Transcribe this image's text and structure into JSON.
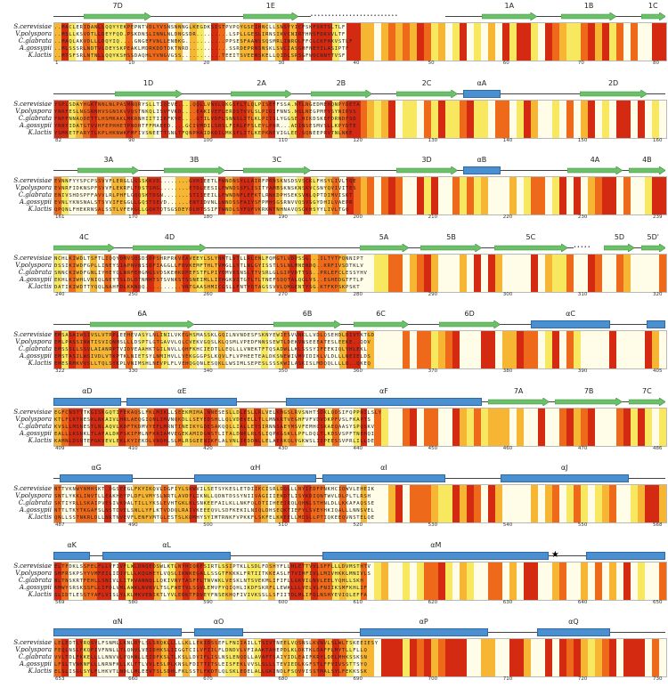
{
  "species": [
    "S.cerevisiae",
    "V.polyspora",
    "C.glabrata",
    "A.gossypii",
    "K.lactis"
  ],
  "colors": {
    "strand": "#6cc06a",
    "helix": "#4a8fd0",
    "identical": "#d42a12",
    "high": "#ee6a1a",
    "medium": "#f6b532",
    "low": "#f8e860",
    "none": "#fffce8"
  },
  "blocks": [
    {
      "ticks": [
        "1",
        "10",
        "20",
        "30",
        "40",
        "50",
        "60",
        "70",
        "80"
      ],
      "ss": [
        {
          "type": "strand",
          "label": "7D",
          "start": 0.05,
          "end": 0.16
        },
        {
          "type": "strand",
          "label": "1E",
          "start": 0.31,
          "end": 0.4
        },
        {
          "type": "gap",
          "start": 0.42,
          "end": 0.64
        },
        {
          "type": "strand",
          "label": "1A",
          "start": 0.7,
          "end": 0.79
        },
        {
          "type": "strand",
          "label": "1B",
          "start": 0.83,
          "end": 0.92
        },
        {
          "type": "strand",
          "label": "1C",
          "start": 0.96,
          "end": 1.0
        }
      ],
      "seqs": [
        "..MACLERIDANLLQQYYEKPEPNTVDLYVSNSNNNGLKEGDKSISTPVPQYGSEIHNCLLSNSYYICFSKFSRTSLTLF",
        "..MSLLKSVDTLLDEYFQD.PSKDNSLINNLNLDNGSDR.........LSPLLGESLIRNSIKVCNIRYHNSFDKVVLTF",
        "..MAQLAKVDLLLDQYIQ....GNGEFVNLLENBKG...........PPSESFAANSSQSMRLINRGLFFCLCKFHKVSTLF",
        "..MLSSSRLNDTVLDEYSKPEAKLMDRKDDTDKTNRD...........SSRDEPRNSNSKLSVCIASGHFNEYILASIPTF",
        "..MTSFSRLNTNLLQQYKSHSSDAQHLYVNGVGSS...........TEEITSVEENSKELLQIDLSRSGFWQCNNYTVSF"
      ]
    },
    {
      "ticks": [
        "82",
        "90",
        "100",
        "110",
        "120",
        "130",
        "140",
        "150",
        "160"
      ],
      "ss": [
        {
          "type": "strand",
          "label": "1D",
          "start": 0.1,
          "end": 0.21
        },
        {
          "type": "strand",
          "label": "2A",
          "start": 0.29,
          "end": 0.39
        },
        {
          "type": "strand",
          "label": "2B",
          "start": 0.42,
          "end": 0.52
        },
        {
          "type": "strand",
          "label": "2C",
          "start": 0.56,
          "end": 0.66
        },
        {
          "type": "helix",
          "label": "αA",
          "start": 0.67,
          "end": 0.73
        },
        {
          "type": "strand",
          "label": "2D",
          "start": 0.86,
          "end": 0.97
        }
      ],
      "seqs": [
        "YSPLSDAYHGKTNNLNLPASMNQRYSLLTIQEVE....QQLLVNVLQKGSFLTLQLPISEFFSSA.NTLNGEDMEHQNPYDETA",
        "YNRFESLNGSNNHVSGNSKVVQSTNKQLISVFVKD....EAKIVEFLERDSTVVLSLPIDIFNNS.NSLNEGPMFYSYNIDVS",
        "FNPFNNAQDETTLHSMKAKLMKRNHIITIIRFKVE....GTILVDFLSNNSLITLKLPIISLYGGSE.HIKDSKEFDRNDFSD",
        "YRNYIDATGTVVHFEPHHETPNDHTFFMAEED....GCIVMDILSRSLFIRLPFSLEYLPNR...ADINSESMVSLLKPYDTE",
        "YSMKETFARYTLKPLHKNWKFMFIVSNEETTSNLTFQNPHAIDKDILMKSFLITLKEPKNEVIGLEE.SQNEEPRVTNLNKE"
      ]
    },
    {
      "ticks": [
        "161",
        "170",
        "180",
        "190",
        "200",
        "210",
        "220",
        "230",
        "239"
      ],
      "ss": [
        {
          "type": "strand",
          "label": "3A",
          "start": 0.04,
          "end": 0.14
        },
        {
          "type": "strand",
          "label": "3B",
          "start": 0.18,
          "end": 0.28
        },
        {
          "type": "strand",
          "label": "3C",
          "start": 0.31,
          "end": 0.42
        },
        {
          "type": "strand",
          "label": "3D",
          "start": 0.56,
          "end": 0.66
        },
        {
          "type": "helix",
          "label": "αB",
          "start": 0.67,
          "end": 0.73
        },
        {
          "type": "strand",
          "label": "4A",
          "start": 0.84,
          "end": 0.93
        },
        {
          "type": "strand",
          "label": "4B",
          "start": 0.94,
          "end": 1.0
        }
      ],
      "seqs": [
        "EVNNFYYSPCPSSVVFLERGLLGSSKKVD........GVHIEETLFWNDNSYLLAIRFPRNSKNSDSVSCKLFHSYLIVLTQE",
        "EVNRFIDKNSPFSVVFLEKRFLTDSTSHG........ETDLEESILFWNDSSFLISITYAMBSKNSKNSKVCSNYQVIVITES",
        "ENIVSHDSPFFAVVLRLPHFLGQQSKTDSN.......STIIEEILLFWNDNFLEFKTLRNKDPHSEKSVNLQPTDIMVISKT",
        "EVNLYKNSNALSTSVVIFEGGLLGQSTSEVD......ENTIDVNLLWNDSSFAIYSFPMHSGSRNVVQSVSGYDHILVAEPR",
        "QPQNLFHEKRNSALSSTLVFEKGLLGQKTQTSGSDEYDLHTSSIFTWNDLSYFQFVKRKNTNHNAVQSGKHSYYLIVLTGQ"
      ]
    },
    {
      "ticks": [
        "240",
        "250",
        "260",
        "270",
        "280",
        "290",
        "300",
        "310",
        "320"
      ],
      "ss": [
        {
          "type": "strand",
          "label": "4C",
          "start": 0.0,
          "end": 0.1
        },
        {
          "type": "strand",
          "label": "4D",
          "start": 0.13,
          "end": 0.25
        },
        {
          "type": "strand",
          "label": "5A",
          "start": 0.5,
          "end": 0.58
        },
        {
          "type": "strand",
          "label": "5B",
          "start": 0.6,
          "end": 0.7
        },
        {
          "type": "strand",
          "label": "5C",
          "start": 0.72,
          "end": 0.84
        },
        {
          "type": "gap",
          "start": 0.85,
          "end": 0.9
        },
        {
          "type": "strand",
          "label": "5D",
          "start": 0.9,
          "end": 0.95
        },
        {
          "type": "strand",
          "label": "5D'",
          "start": 0.96,
          "end": 1.0
        }
      ],
      "seqs": [
        "NCHLKIWDLTSFTLIQQYDMVSQSDSDPSHRFRKVEAVEEYLSLYNNTLVTLLRLENLFQMGTLVDVSSG...ILTYTFQNNIPT",
        "DSSIKIWDFGPLLINEYSIAPNVNSSDFIAGGLLFDVKEMFTHLTVMGLLYTLNLGYISSTLSLNLMNENDQ..KRFIVSDTKLV",
        "SNNCKIWDFGNLIYHEYQLNRFEHGNGSVDSKEHKDPEFSTFLPIYEMVKSNSLTTVSRLGLGIPVDTTSS..PRLEFCLESSYHV",
        "EKHLKIWHLVNIQLNEYTSLDLDTNNHTSTSVNKSTSSNEIMLLIEHGKVITGTLTLTNEFSQQTALQGLVS..EGHEDGTFTLP",
        "DATIKIWDTTYQQLNAHFDLKKNQQ..........VNTGAASHMICGSLLFNTYQTAGSSVVLQMGENTYSG.KTFKPSKPSKT"
      ]
    },
    {
      "ticks": [
        "322",
        "330",
        "340",
        "350",
        "360",
        "370",
        "380",
        "390",
        "405"
      ],
      "ss": [
        {
          "type": "strand",
          "label": "6A",
          "start": 0.06,
          "end": 0.23
        },
        {
          "type": "strand",
          "label": "6B",
          "start": 0.36,
          "end": 0.47
        },
        {
          "type": "strand",
          "label": "6C",
          "start": 0.49,
          "end": 0.58
        },
        {
          "type": "strand",
          "label": "6D",
          "start": 0.63,
          "end": 0.73
        },
        {
          "type": "helix",
          "label": "αC",
          "start": 0.78,
          "end": 0.91
        },
        {
          "type": "helix",
          "label": "",
          "start": 0.97,
          "end": 1.0
        }
      ],
      "seqs": [
        "EMSASAIWSIVSLVTRPLEEHEVASYLNLINILVKEGHSMASSKLGQILNVNDESFSKNYEWIESVVNKLLVDLQSEHDLDIVTKTGD",
        "EMLPASSINWTISVIQNHSLLLDSPTLGTGAVVLQLCVEKVGQSLKLQSMLVPEDFNNSSEWTLDEKVNSEEEATESLEEKE..QDV",
        "EMSSSLLSSVLAIANRPTVIDVEAAHKTGILNVLLQHFKHCIEDTLLEQLLLVNEKTFTQSADWLLKLSSSYIFEEKIQLVHLEKL",
        "EMSTASILWSIVDLVTKPTKLNIETSYLNMIHVLLVEKGGGPSLKQVLFLVPHEETEALDKSNEWIVMVIDIKLVLDLLLNEIELDS",
        "EMESRMKVVSLLTQLSYKPLVNIMSHLNEVPLFLVEHQGQNLESQKLLWSIMLSEPESLSSSKWILASKISLMDQQLLLLD..QKEQ"
      ]
    },
    {
      "ticks": [
        "409",
        "410",
        "420",
        "430",
        "440",
        "450",
        "460",
        "470",
        "486"
      ],
      "ss": [
        {
          "type": "helix",
          "label": "αD",
          "start": 0.0,
          "end": 0.11
        },
        {
          "type": "helix",
          "label": "αE",
          "start": 0.12,
          "end": 0.3
        },
        {
          "type": "helix",
          "label": "αF",
          "start": 0.38,
          "end": 0.7
        },
        {
          "type": "strand",
          "label": "7A",
          "start": 0.71,
          "end": 0.81
        },
        {
          "type": "strand",
          "label": "7B",
          "start": 0.82,
          "end": 0.93
        },
        {
          "type": "strand",
          "label": "7C",
          "start": 0.94,
          "end": 1.0
        }
      ],
      "seqs": [
        "EGFCNSTTTKGISKGQTIFEKAQSLFKLMIKLLSEEKMIMA.NNESESLLDLESLLRLVELKHGSLRVSNHTSDKLQDSIFQPPNILSLY",
        "KTLFLKTNESKLNKAIVLHRLAEQGIQNLIMVNQKDLLSEYEDSHLLQLVDEVELLTLLMNKRTVEGHFVFVDVDKPFVSLFKAPTS",
        "KVSLLMSNESTLNLAQVLKDFTKDMVYEFLMRNTINEIKYGDESAKQQLLIALLEYSIRNNSAEYMSVFEMHCSKAEQAASYSPQSKV",
        "EALLLKSNKLTLAFALDKFSKIFMLNFKRIAMVEGEKAMIDGNSTLITALDNRLRLSLIQPKGSKLLPFLDQLTLKDSVSPFTNEHQI",
        "KAMNLDSNTEFGKVEVLEKLKYIEKDLVNQHLSLMLRSGEENIKFLALVNLIEDDNLLELAERKQLVGKWSLIIPEESSVPRLILLDE"
      ]
    },
    {
      "ticks": [
        "487",
        "490",
        "500",
        "510",
        "520",
        "530",
        "540",
        "550",
        "568"
      ],
      "ss": [
        {
          "type": "helix",
          "label": "αG",
          "start": 0.01,
          "end": 0.13
        },
        {
          "type": "helix",
          "label": "αH",
          "start": 0.23,
          "end": 0.43
        },
        {
          "type": "helix",
          "label": "αI",
          "start": 0.44,
          "end": 0.64
        },
        {
          "type": "helix",
          "label": "αJ",
          "start": 0.73,
          "end": 0.94
        }
      ],
      "seqs": [
        "NTTVKNWYNMHSKT.DGSEEGLFKYIKQVLDGFIYLSKWVILSETSYKESLETDIIKCISRLDQLLLNYIEDFPNKHCIQWVLEHEIK",
        "SNTLYKKLINVTLLEAKHEYPLDFLVMYSLNRTLAVDFLIKNLLQDNTDSSYNIIVAGIIIEKDTLISYKDIQNTWVLDLPLTLRSH",
        "SKTIYRLLSKAIPVESIVKDALTILLYKSLEVHTGKLKLSNKEEFAILKLLNKFQLDTIIHEEIRQLQHNLSTHNLDLLKKAFAQSSE",
        "NTTLTKYTKGAFSLNSTDVELSNLLYFLKTVDDQLRAIVKEEEQVLSDFKEKILNIQLDHSEQKTIEFYLSVEYHKIQALLLNNSVEL",
        "QNLLSSTNKRLDLLNRTNVEVFLENFVMTGLESTSLKDMHYSYIMTRNKFVPKKFLSKFELKKEELLMDSLLPTIQKEEQVNSTELQE"
      ]
    },
    {
      "ticks": [
        "569",
        "580",
        "590",
        "600",
        "610",
        "620",
        "630",
        "640",
        "650"
      ],
      "ss": [
        {
          "type": "helix",
          "label": "αK",
          "start": 0.0,
          "end": 0.06
        },
        {
          "type": "helix",
          "label": "αL",
          "start": 0.08,
          "end": 0.29
        },
        {
          "type": "helix",
          "label": "αM",
          "start": 0.44,
          "end": 0.81
        },
        {
          "type": "star",
          "label": "★",
          "start": 0.82,
          "end": 0.82
        },
        {
          "type": "helix",
          "label": "",
          "start": 0.87,
          "end": 1.0
        }
      ],
      "seqs": [
        "ELTFDKLSSFELFLLVFIVFLWLDNQEDSWLKTLNYHIQKFSIRTLSSIPTKLLSDLFDSHYFLLHLETTVVLSFFLLLDVMSTHTV",
        "SMFRSKPSYYVMFEILIDIVLLLKQGHEYLVQSLIKNKEGALLSSGTFKKKLFRTIITKKEASLFTVIHFIVLLMIVHKKLMNIVLS",
        "NLTNSKRTFEHLLSNIVLLITKVANNQLLQKIVNYTASFFLTNVWKLVESKLNTSVEKMLIFIFLLGKVILNVLEELYQHLLSKH",
        "KMWYSRSKSSFLLIFDLVMLAWKLNVNVLTSLFWETVLSSVLEMVFYQIQHLIKDFSKRFLLEWKLLLVELVLFNIIKSMFKHLIF",
        "SLIDTLESSTYAFLVISLYLKLMKVENIKTLYVLEDKTFDVEYFNSEKHQFIVIVKSSLLSFIITDLMLIFQLNSHYEVIQLEFFA"
      ]
    },
    {
      "ticks": [
        "653",
        "660",
        "670",
        "680",
        "690",
        "700",
        "710",
        "720",
        "730"
      ],
      "ss": [
        {
          "type": "helix",
          "label": "αN",
          "start": 0.0,
          "end": 0.21
        },
        {
          "type": "helix",
          "label": "αO",
          "start": 0.23,
          "end": 0.31
        },
        {
          "type": "helix",
          "label": "αP",
          "start": 0.5,
          "end": 0.71
        },
        {
          "type": "helix",
          "label": "αQ",
          "start": 0.79,
          "end": 0.91
        }
      ],
      "seqs": [
        "LELEDTLYRQSYLFSNMLLKNLRYLSLSRQKLLLLLKLLEKIDSSEFLFNIIAILLTSIVTNEELVQSNSLKVNVLSLWLTSKEEIESY",
        "FEQLNSLFKQFIVFNNLLTLQNVLVEIDHKSLIIGGTCILVFIILFLDNDVLVFIAAKTAHEPDLKLDKTKLDAFFLMYTLLFLLQ",
        "VVLTDLFKKELLLLNNVVLVQKNLLEIDFKSLTLKSLLDVIFLISLNSLENQDLLAVAFTSAIYIDLEAIFKRYLDELMHKSSKSN",
        "LFSLTVNKNFLLLNRNFKLLKLTTLVVLESLPLKNSLFDITTITSLEISFEKLVVSLSLLLTEVIEDLKGFSTLFFVIVSSTTSYQ",
        "ELSLISGLSYLFLHKVTLNDLLMLEEVTSLSDHLFKLSSTLFKDTLQLSKLEDELALLGKINDLFSQVVISSTMALSYLFEKKSSK"
      ]
    }
  ]
}
